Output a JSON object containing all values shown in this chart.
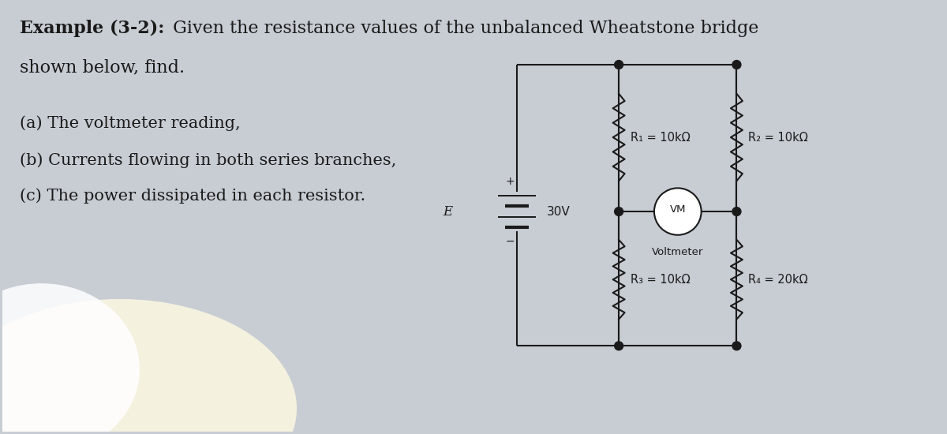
{
  "bg_color": "#c8cdd4",
  "text_color": "#1a1a1a",
  "line_color": "#1a1a1a",
  "title_bold": "Example (3-2):",
  "title_normal": " Given the resistance values of the unbalanced Wheatstone bridge",
  "title_line2": "shown below, find.",
  "items": [
    "(a) The voltmeter reading,",
    "(b) Currents flowing in both series branches,",
    "(c) The power dissipated in each resistor."
  ],
  "battery_label": "E",
  "battery_voltage": "30V",
  "r1_label": "R₁ = 10kΩ",
  "r2_label": "R₂ = 10kΩ",
  "r3_label": "R₃ = 10kΩ",
  "r4_label": "R₄ = 20kΩ",
  "vm_label": "VM",
  "voltmeter_label": "Voltmeter",
  "font_size_title": 16,
  "font_size_items": 15,
  "font_size_circuit": 10.5,
  "font_size_bat": 11
}
